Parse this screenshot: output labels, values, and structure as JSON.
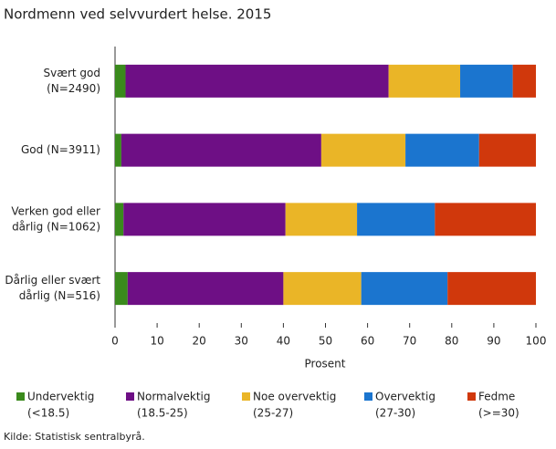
{
  "chart_data": {
    "type": "stacked-bar-horizontal",
    "title": "Nordmenn ved selvvurdert helse. 2015",
    "categories": [
      [
        "Svært god",
        "(N=2490)"
      ],
      [
        "God (N=3911)"
      ],
      [
        "Verken god eller",
        "dårlig (N=1062)"
      ],
      [
        "Dårlig eller svært",
        "dårlig (N=516)"
      ]
    ],
    "series": [
      {
        "name": [
          "Undervektig",
          "(<18.5)"
        ],
        "color": "#3a8a1c",
        "values": [
          2.5,
          1.5,
          2,
          3
        ]
      },
      {
        "name": [
          "Normalvektig",
          "(18.5-25)"
        ],
        "color": "#6e0f85",
        "values": [
          62.5,
          47.5,
          38.5,
          37
        ]
      },
      {
        "name": [
          "Noe overvektig",
          "(25-27)"
        ],
        "color": "#eab527",
        "values": [
          17,
          20,
          17,
          18.5
        ]
      },
      {
        "name": [
          "Overvektig",
          "(27-30)"
        ],
        "color": "#1b75cf",
        "values": [
          12.5,
          17.5,
          18.5,
          20.5
        ]
      },
      {
        "name": [
          "Fedme",
          "(>=30)"
        ],
        "color": "#d0380c",
        "values": [
          5.5,
          13.5,
          24,
          21
        ]
      }
    ],
    "xlabel": "Prosent",
    "xlim": [
      0,
      100
    ],
    "xticks": [
      0,
      10,
      20,
      30,
      40,
      50,
      60,
      70,
      80,
      90,
      100
    ],
    "source": "Kilde: Statistisk sentralbyrå."
  }
}
